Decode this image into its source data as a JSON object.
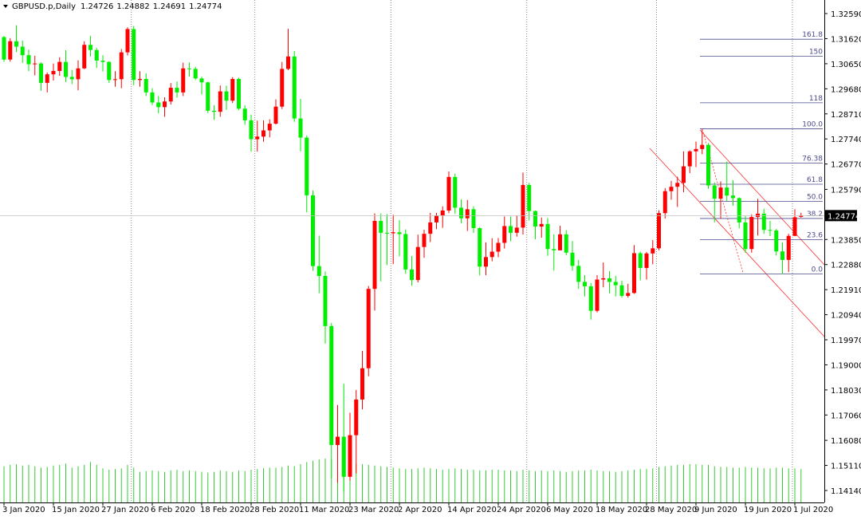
{
  "chart_data": {
    "type": "candlestick",
    "title": "GBPUSD.p,Daily",
    "categories": [
      "3 Jan 2020",
      null,
      null,
      null,
      null,
      null,
      null,
      null,
      "15 Jan 2020",
      null,
      null,
      null,
      null,
      null,
      null,
      null,
      "27 Jan 2020",
      null,
      null,
      null,
      null,
      null,
      null,
      null,
      "6 Feb 2020",
      null,
      null,
      null,
      null,
      null,
      null,
      null,
      "18 Feb 2020",
      null,
      null,
      null,
      null,
      null,
      null,
      null,
      "28 Feb 2020",
      null,
      null,
      null,
      null,
      null,
      null,
      null,
      "11 Mar 2020",
      null,
      null,
      null,
      null,
      null,
      null,
      null,
      "23 Mar 2020",
      null,
      null,
      null,
      null,
      null,
      null,
      null,
      "2 Apr 2020",
      null,
      null,
      null,
      null,
      null,
      null,
      null,
      "14 Apr 2020",
      null,
      null,
      null,
      null,
      null,
      null,
      null,
      "24 Apr 2020",
      null,
      null,
      null,
      null,
      null,
      null,
      null,
      "6 May 2020",
      null,
      null,
      null,
      null,
      null,
      null,
      null,
      "18 May 2020",
      null,
      null,
      null,
      null,
      null,
      null,
      null,
      "28 May 2020",
      null,
      null,
      null,
      null,
      null,
      null,
      null,
      "9 Jun 2020",
      null,
      null,
      null,
      null,
      null,
      null,
      null,
      "19 Jun 2020",
      null,
      null,
      null,
      null,
      null,
      null,
      null,
      "1 Jul 2020",
      null
    ],
    "open": [
      1.3168,
      1.3081,
      1.3152,
      1.3131,
      1.3098,
      1.3063,
      1.3066,
      1.2991,
      1.3024,
      1.3037,
      1.3072,
      1.3014,
      1.3005,
      1.3047,
      1.3138,
      1.3118,
      1.3077,
      1.3072,
      1.3002,
      1.3005,
      1.3109,
      1.3199,
      1.3002,
      1.3006,
      1.2954,
      1.2915,
      1.2897,
      1.2919,
      1.2972,
      1.2954,
      1.3047,
      1.3045,
      1.3008,
      1.2993,
      1.2883,
      1.2879,
      1.2958,
      1.2922,
      1.3006,
      1.2891,
      1.2846,
      1.2773,
      1.2783,
      1.2807,
      1.2833,
      1.2899,
      1.3045,
      1.3093,
      1.2853,
      1.2779,
      1.2556,
      1.2282,
      1.2244,
      1.205,
      1.159,
      1.1622,
      1.1467,
      1.1628,
      1.1766,
      1.1887,
      1.2194,
      1.2457,
      1.2411,
      1.2409,
      1.2413,
      1.2406,
      1.2269,
      1.2228,
      1.2356,
      1.2407,
      1.2451,
      1.2478,
      1.2497,
      1.2627,
      1.2508,
      1.2467,
      1.2502,
      1.2429,
      1.228,
      1.2317,
      1.2338,
      1.2372,
      1.2437,
      1.2411,
      1.2431,
      1.2596,
      1.2495,
      1.2435,
      1.2445,
      1.2348,
      1.2343,
      1.2405,
      1.2334,
      1.2283,
      1.2221,
      1.2204,
      1.2109,
      1.223,
      1.2235,
      1.2221,
      1.2208,
      1.2167,
      1.2178,
      1.2332,
      1.2275,
      1.2331,
      1.2351,
      1.2487,
      1.2572,
      1.2589,
      1.2604,
      1.2668,
      1.2726,
      1.2735,
      1.2751,
      1.2594,
      1.2543,
      1.2586,
      1.2555,
      1.2545,
      1.2451,
      1.2348,
      1.2472,
      1.2485,
      1.2422,
      1.242,
      1.2339,
      1.2306,
      1.2399,
      1.24726
    ],
    "high": [
      1.3172,
      1.3164,
      1.3214,
      1.3154,
      1.312,
      1.3096,
      1.3071,
      1.3031,
      1.3066,
      1.309,
      1.3117,
      1.3041,
      1.3078,
      1.3152,
      1.3173,
      1.3126,
      1.3098,
      1.3075,
      1.3036,
      1.3122,
      1.3206,
      1.3211,
      1.3036,
      1.3028,
      1.297,
      1.294,
      1.2935,
      1.299,
      1.2996,
      1.3069,
      1.307,
      1.3053,
      1.3015,
      1.2995,
      1.2905,
      1.2981,
      1.298,
      1.3013,
      1.3011,
      1.2904,
      1.2868,
      1.2845,
      1.2846,
      1.285,
      1.2927,
      1.3072,
      1.32,
      1.3114,
      1.2929,
      1.2787,
      1.2575,
      1.24,
      1.2261,
      1.2062,
      1.1745,
      1.1827,
      1.1715,
      1.1803,
      1.1954,
      1.2205,
      1.2486,
      1.2486,
      1.2483,
      1.2481,
      1.246,
      1.2424,
      1.2321,
      1.2404,
      1.2423,
      1.2488,
      1.2488,
      1.2513,
      1.2648,
      1.264,
      1.254,
      1.2538,
      1.2513,
      1.2433,
      1.2374,
      1.239,
      1.2391,
      1.2474,
      1.2474,
      1.2478,
      1.2644,
      1.2604,
      1.2497,
      1.247,
      1.2468,
      1.2405,
      1.2438,
      1.2421,
      1.2379,
      1.2306,
      1.2247,
      1.2217,
      1.2247,
      1.2296,
      1.2263,
      1.2244,
      1.2226,
      1.2214,
      1.2363,
      1.2338,
      1.2337,
      1.2383,
      1.2498,
      1.2584,
      1.2612,
      1.2628,
      1.2726,
      1.273,
      1.2764,
      1.2813,
      1.2758,
      1.2606,
      1.261,
      1.2687,
      1.2614,
      1.2548,
      1.2476,
      1.2482,
      1.2542,
      1.2504,
      1.2457,
      1.2426,
      1.2374,
      1.2407,
      1.2502,
      1.24882
    ],
    "low": [
      1.3072,
      1.3073,
      1.311,
      1.3068,
      1.3036,
      1.302,
      1.296,
      1.2954,
      1.3,
      1.3018,
      1.2994,
      1.2986,
      1.2962,
      1.3044,
      1.3093,
      1.3049,
      1.3035,
      1.2991,
      1.2976,
      1.297,
      1.3097,
      1.2982,
      1.2976,
      1.294,
      1.2905,
      1.2873,
      1.286,
      1.2907,
      1.2934,
      1.294,
      1.3015,
      1.3002,
      1.2946,
      1.2874,
      1.2848,
      1.286,
      1.2887,
      1.2913,
      1.2885,
      1.2829,
      1.2725,
      1.2725,
      1.2763,
      1.278,
      1.283,
      1.289,
      1.304,
      1.284,
      1.2726,
      1.249,
      1.2264,
      1.2177,
      1.1982,
      1.146,
      1.1443,
      1.1409,
      1.1452,
      1.148,
      1.1728,
      1.1856,
      1.211,
      1.2223,
      1.2286,
      1.229,
      1.232,
      1.2252,
      1.2206,
      1.2219,
      1.2314,
      1.2375,
      1.2425,
      1.243,
      1.2487,
      1.2484,
      1.2448,
      1.2418,
      1.241,
      1.2246,
      1.2247,
      1.2301,
      1.2317,
      1.235,
      1.2378,
      1.2396,
      1.2404,
      1.2458,
      1.2386,
      1.2392,
      1.2322,
      1.2265,
      1.2343,
      1.2324,
      1.2264,
      1.2194,
      1.2165,
      1.2075,
      1.2103,
      1.22,
      1.2177,
      1.2165,
      1.216,
      1.216,
      1.2175,
      1.2227,
      1.223,
      1.2289,
      1.2343,
      1.2466,
      1.2539,
      1.2511,
      1.2568,
      1.2642,
      1.2665,
      1.2715,
      1.2581,
      1.2451,
      1.2466,
      1.2534,
      1.2516,
      1.2428,
      1.2334,
      1.2334,
      1.24,
      1.2407,
      1.2398,
      1.2323,
      1.2252,
      1.2259,
      1.2398,
      1.24691
    ],
    "close": [
      1.3081,
      1.3152,
      1.3131,
      1.3098,
      1.3063,
      1.3066,
      1.2991,
      1.3024,
      1.3037,
      1.3072,
      1.3014,
      1.3005,
      1.3047,
      1.3138,
      1.3118,
      1.3077,
      1.3072,
      1.3002,
      1.3005,
      1.3109,
      1.3199,
      1.3002,
      1.3006,
      1.2954,
      1.2915,
      1.2897,
      1.2919,
      1.2972,
      1.2954,
      1.3047,
      1.3045,
      1.3008,
      1.2993,
      1.2883,
      1.2879,
      1.2958,
      1.2922,
      1.3006,
      1.2891,
      1.2846,
      1.2773,
      1.2783,
      1.2807,
      1.2833,
      1.2899,
      1.3045,
      1.3093,
      1.2853,
      1.2779,
      1.2556,
      1.2282,
      1.2244,
      1.205,
      1.159,
      1.1622,
      1.1467,
      1.1628,
      1.1766,
      1.1887,
      1.2194,
      1.2457,
      1.2411,
      1.2409,
      1.2413,
      1.2406,
      1.2269,
      1.2228,
      1.2356,
      1.2407,
      1.2451,
      1.2478,
      1.2497,
      1.2627,
      1.2508,
      1.2467,
      1.2502,
      1.2429,
      1.228,
      1.2317,
      1.2338,
      1.2372,
      1.2437,
      1.2411,
      1.2431,
      1.2596,
      1.2495,
      1.2435,
      1.2445,
      1.2348,
      1.2343,
      1.2405,
      1.2334,
      1.2283,
      1.2221,
      1.2204,
      1.2109,
      1.223,
      1.2235,
      1.2221,
      1.2208,
      1.2167,
      1.2178,
      1.2332,
      1.2275,
      1.2331,
      1.2351,
      1.2487,
      1.2572,
      1.2589,
      1.2604,
      1.2668,
      1.2726,
      1.2735,
      1.2751,
      1.2594,
      1.2543,
      1.2586,
      1.2555,
      1.2545,
      1.2451,
      1.2348,
      1.2472,
      1.2485,
      1.2422,
      1.242,
      1.2339,
      1.2306,
      1.2399,
      1.2471,
      1.24774
    ],
    "volume": [
      52000,
      54000,
      55000,
      53000,
      54000,
      52000,
      50000,
      51000,
      53000,
      54000,
      56000,
      50000,
      52000,
      54000,
      58000,
      54000,
      49000,
      47000,
      48000,
      49000,
      54000,
      50000,
      44000,
      45000,
      46000,
      45000,
      44000,
      46000,
      47000,
      45000,
      46000,
      45000,
      44000,
      43000,
      44000,
      46000,
      45000,
      44000,
      46000,
      45000,
      47000,
      48000,
      49000,
      50000,
      50000,
      51000,
      53000,
      52000,
      55000,
      58000,
      60000,
      62000,
      63000,
      62000,
      61000,
      60000,
      58000,
      56000,
      55000,
      54000,
      53000,
      52000,
      51000,
      50000,
      49000,
      48000,
      48000,
      49000,
      50000,
      49000,
      48000,
      47000,
      48000,
      49000,
      48000,
      47000,
      47000,
      46000,
      46000,
      47000,
      47000,
      46000,
      46000,
      45000,
      47000,
      46000,
      45000,
      46000,
      45000,
      46000,
      45000,
      44000,
      45000,
      46000,
      46000,
      47000,
      46000,
      45000,
      45000,
      44000,
      45000,
      46000,
      47000,
      48000,
      48000,
      49000,
      51000,
      52000,
      53000,
      54000,
      54000,
      55000,
      55000,
      54000,
      54000,
      52000,
      51000,
      51000,
      50000,
      50000,
      51000,
      50000,
      50000,
      49000,
      49000,
      50000,
      50000,
      49000,
      49000,
      48000
    ],
    "up_color": "#ff0000",
    "down_color": "#00ee00",
    "volume_color": "#33cc33",
    "ylim": [
      1.13677,
      1.33115
    ],
    "yticks": [
      {
        "value": 1.3259,
        "label": "1.32590"
      },
      {
        "value": 1.3162,
        "label": "1.31620"
      },
      {
        "value": 1.3065,
        "label": "1.30650"
      },
      {
        "value": 1.2968,
        "label": "1.29680"
      },
      {
        "value": 1.2871,
        "label": "1.28710"
      },
      {
        "value": 1.2774,
        "label": "1.27740"
      },
      {
        "value": 1.2677,
        "label": "1.26770"
      },
      {
        "value": 1.2579,
        "label": "1.25790"
      },
      {
        "value": 1.2385,
        "label": "1.23850"
      },
      {
        "value": 1.2288,
        "label": "1.22880"
      },
      {
        "value": 1.2191,
        "label": "1.21910"
      },
      {
        "value": 1.2094,
        "label": "1.20940"
      },
      {
        "value": 1.1997,
        "label": "1.19970"
      },
      {
        "value": 1.19,
        "label": "1.19000"
      },
      {
        "value": 1.1803,
        "label": "1.18030"
      },
      {
        "value": 1.1706,
        "label": "1.17060"
      },
      {
        "value": 1.1608,
        "label": "1.16080"
      },
      {
        "value": 1.1511,
        "label": "1.15110"
      },
      {
        "value": 1.1414,
        "label": "1.14140"
      }
    ],
    "fibonacci": {
      "from": 1.2813,
      "to": 1.2252,
      "color": "#4a4a8c",
      "levels": [
        {
          "value": 161.8,
          "label": "161.8"
        },
        150,
        118,
        {
          "value": 100,
          "label": "100.0"
        },
        76.38,
        61.8,
        {
          "value": 50,
          "label": "50.0"
        },
        38.2,
        23.6,
        {
          "value": 0,
          "label": "0.0"
        }
      ]
    }
  }
}
